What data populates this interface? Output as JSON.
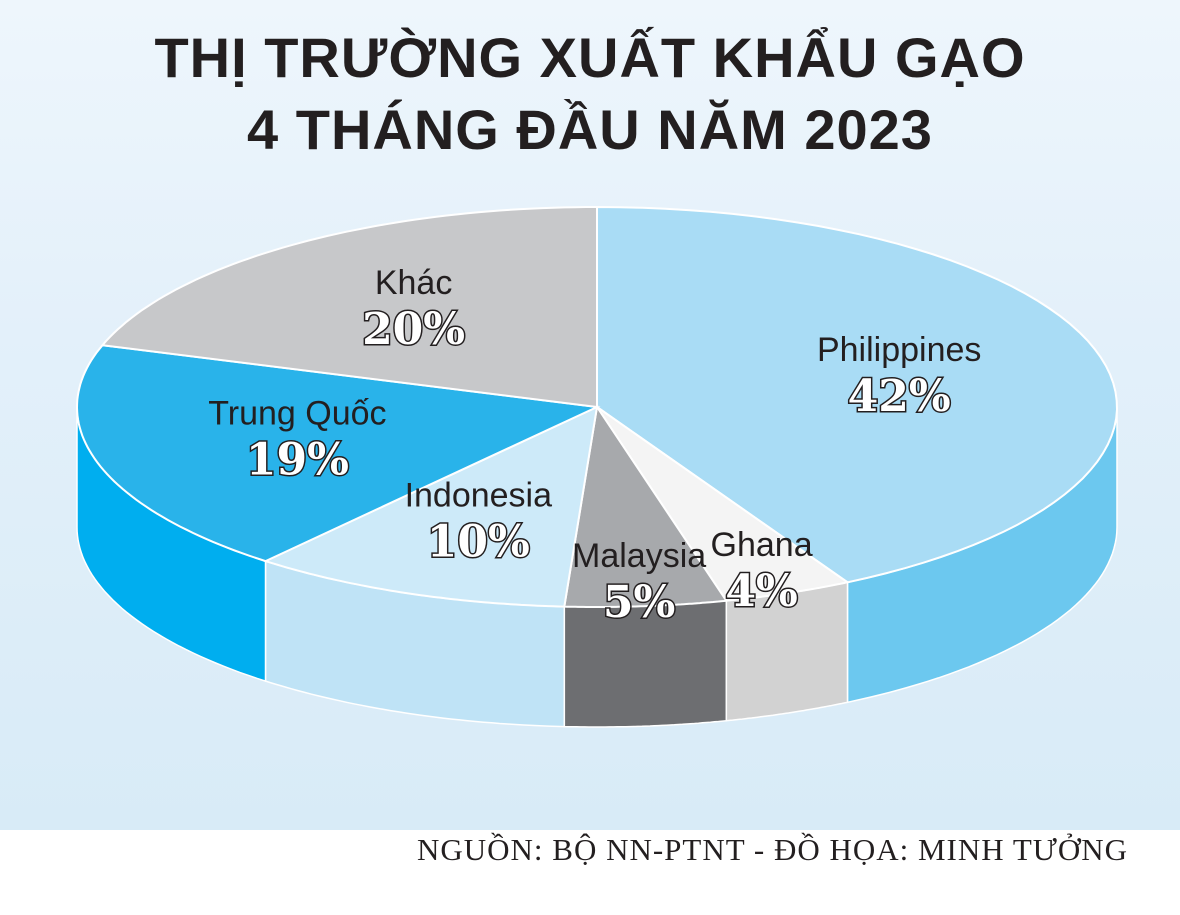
{
  "title_lines": [
    "THỊ TRƯỜNG XUẤT KHẨU GẠO",
    "4 THÁNG ĐẦU NĂM 2023"
  ],
  "source": "NGUỒN: BỘ NN-PTNT - ĐỒ HỌA: MINH TƯỞNG",
  "chart_data": {
    "type": "pie",
    "title": "THỊ TRƯỜNG XUẤT KHẨU GẠO 4 THÁNG ĐẦU NĂM 2023",
    "legend": "none",
    "slices": [
      {
        "name": "Philippines",
        "value": 42,
        "label": "42%",
        "color": "#a9dcf5",
        "side_color": "#6cc8ef"
      },
      {
        "name": "Ghana",
        "value": 4,
        "label": "4%",
        "color": "#f4f4f4",
        "side_color": "#d2d2d2"
      },
      {
        "name": "Malaysia",
        "value": 5,
        "label": "5%",
        "color": "#a7a9ac",
        "side_color": "#6d6e71"
      },
      {
        "name": "Indonesia",
        "value": 10,
        "label": "10%",
        "color": "#cdeaf9",
        "side_color": "#bfe3f6"
      },
      {
        "name": "Trung Quốc",
        "value": 19,
        "label": "19%",
        "color": "#29b3ea",
        "side_color": "#00aeef"
      },
      {
        "name": "Khác",
        "value": 20,
        "label": "20%",
        "color": "#c7c8ca",
        "side_color": "#a7a9ac"
      }
    ]
  }
}
